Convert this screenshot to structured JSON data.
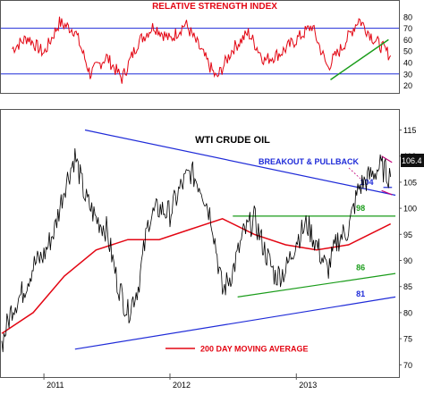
{
  "colors": {
    "price": "#000000",
    "rsi": "#e30613",
    "ma": "#e30613",
    "title_red": "#e30613",
    "blue_lines": "#1f2bd8",
    "green_lines": "#1a9c1a",
    "magenta": "#c0007a",
    "frame": "#555555"
  },
  "chart_data": [
    {
      "type": "line",
      "title": "RELATIVE STRENGTH INDEX",
      "ylim": [
        15,
        90
      ],
      "yticks": [
        "20",
        "30",
        "40",
        "50",
        "60",
        "70",
        "80"
      ],
      "reference_lines": [
        30,
        70
      ],
      "series": [
        {
          "x": [
            "2010-10-01",
            "2010-11-15",
            "2011-01-01",
            "2011-02-15",
            "2011-04-01",
            "2011-05-15",
            "2011-07-01",
            "2011-08-15",
            "2011-10-01",
            "2011-11-15",
            "2012-01-01",
            "2012-02-15",
            "2012-04-01",
            "2012-05-15",
            "2012-07-01",
            "2012-08-15",
            "2012-10-01",
            "2012-11-15",
            "2013-01-01",
            "2013-02-15",
            "2013-04-01",
            "2013-05-15",
            "2013-07-01",
            "2013-08-15",
            "2013-10-01"
          ],
          "values": [
            52,
            62,
            48,
            75,
            68,
            30,
            45,
            26,
            58,
            72,
            60,
            74,
            50,
            26,
            52,
            66,
            42,
            48,
            60,
            72,
            36,
            54,
            78,
            60,
            46
          ]
        }
      ],
      "annotations": [
        {
          "type": "trendline",
          "x": [
            "2013-04-10",
            "2013-09-25"
          ],
          "y": [
            25,
            60
          ]
        }
      ]
    },
    {
      "type": "line",
      "title": "WTI CRUDE OIL",
      "x_tick_labels": [
        "2011",
        "2012",
        "2013"
      ],
      "ylim": [
        68,
        118
      ],
      "yticks": [
        "70",
        "75",
        "80",
        "85",
        "90",
        "95",
        "100",
        "105",
        "110",
        "115"
      ],
      "last_value_label": "106.4",
      "series": [
        {
          "x": [
            "2010-09-01",
            "2010-10-01",
            "2010-11-01",
            "2010-12-01",
            "2011-01-01",
            "2011-02-01",
            "2011-03-01",
            "2011-04-01",
            "2011-05-01",
            "2011-06-01",
            "2011-07-01",
            "2011-08-01",
            "2011-09-01",
            "2011-10-01",
            "2011-11-01",
            "2011-12-01",
            "2012-01-01",
            "2012-02-01",
            "2012-03-01",
            "2012-04-01",
            "2012-05-01",
            "2012-06-01",
            "2012-07-01",
            "2012-08-01",
            "2012-09-01",
            "2012-10-01",
            "2012-11-01",
            "2012-12-01",
            "2013-01-01",
            "2013-02-01",
            "2013-03-01",
            "2013-04-01",
            "2013-05-01",
            "2013-06-01",
            "2013-07-01",
            "2013-08-01",
            "2013-09-01",
            "2013-10-01"
          ],
          "values": [
            74,
            81,
            84,
            89,
            91,
            96,
            104,
            110,
            102,
            98,
            96,
            86,
            80,
            85,
            98,
            100,
            99,
            104,
            107,
            104,
            98,
            84,
            88,
            95,
            98,
            92,
            87,
            88,
            94,
            97,
            93,
            88,
            94,
            96,
            104,
            106,
            108,
            106
          ]
        },
        {
          "name": "200 DAY MOVING AVERAGE",
          "x": [
            "2010-09-01",
            "2010-12-01",
            "2011-03-01",
            "2011-06-01",
            "2011-09-01",
            "2011-12-01",
            "2012-03-01",
            "2012-06-01",
            "2012-09-01",
            "2012-12-01",
            "2013-03-01",
            "2013-06-01",
            "2013-08-01",
            "2013-10-01"
          ],
          "values": [
            76,
            80,
            87,
            92,
            94,
            94,
            96,
            98,
            95,
            93,
            92,
            93,
            95,
            97
          ]
        }
      ],
      "annotations": [
        {
          "type": "line",
          "label": "",
          "x": [
            "2011-04-30",
            "2013-10-15"
          ],
          "y": [
            115,
            102.5
          ]
        },
        {
          "type": "line",
          "label": "81",
          "x": [
            "2011-04-01",
            "2013-10-15"
          ],
          "y": [
            73,
            83
          ]
        },
        {
          "type": "line",
          "label": "86",
          "x": [
            "2012-07-15",
            "2013-10-15"
          ],
          "y": [
            83,
            87.5
          ]
        },
        {
          "type": "line",
          "label": "98",
          "x": [
            "2012-07-01",
            "2013-10-15"
          ],
          "y": [
            98.5,
            98.5
          ]
        },
        {
          "type": "line",
          "label": "104",
          "x": [
            "2013-09-10",
            "2013-10-05"
          ],
          "y": [
            104,
            104
          ]
        },
        {
          "type": "text",
          "label": "BREAKOUT & PULLBACK"
        }
      ]
    }
  ],
  "legend": {
    "ma_label": "200 DAY MOVING AVERAGE"
  }
}
